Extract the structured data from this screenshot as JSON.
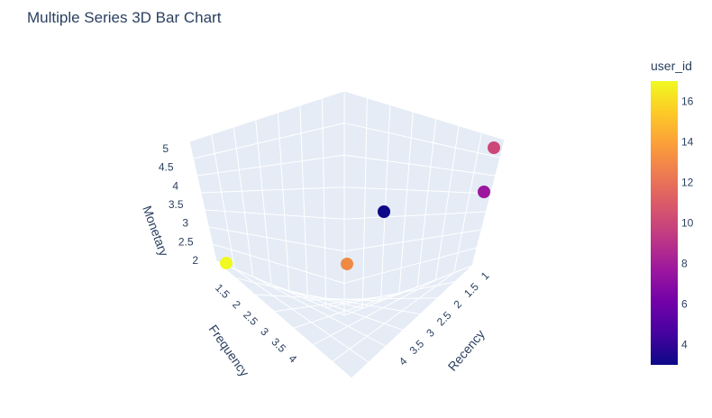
{
  "chart_data": {
    "type": "scatter",
    "subtype": "3d-scatter",
    "title": "Multiple Series 3D Bar Chart",
    "axes": {
      "x": {
        "title": "Recency",
        "ticks": [
          "1",
          "1.5",
          "2",
          "2.5",
          "3",
          "3.5",
          "4"
        ],
        "range": [
          1,
          4
        ]
      },
      "y": {
        "title": "Frequency",
        "ticks": [
          "1.5",
          "2",
          "2.5",
          "3",
          "3.5",
          "4"
        ],
        "range": [
          1.5,
          4
        ]
      },
      "z": {
        "title": "Monetary",
        "ticks": [
          "2",
          "2.5",
          "3",
          "3.5",
          "4",
          "4.5",
          "5"
        ],
        "range": [
          2,
          5
        ]
      }
    },
    "points": [
      {
        "user_id": 17,
        "color": "#f0f921"
      },
      {
        "user_id": 14,
        "color": "#ef8a45"
      },
      {
        "user_id": 3,
        "color": "#0d0887"
      },
      {
        "user_id": 11,
        "color": "#cc4778"
      },
      {
        "user_id": 7,
        "color": "#9c179e"
      }
    ],
    "colorbar": {
      "title": "user_id",
      "ticks": [
        "4",
        "6",
        "8",
        "10",
        "12",
        "14",
        "16"
      ],
      "range": [
        3,
        17
      ],
      "colorscale": [
        "#0d0887",
        "#46039f",
        "#7201a8",
        "#9c179e",
        "#bd3786",
        "#d8576b",
        "#ed7953",
        "#fb9f3a",
        "#fdca26",
        "#f0f921"
      ]
    },
    "grid": true,
    "background": "#e5ecf6"
  }
}
